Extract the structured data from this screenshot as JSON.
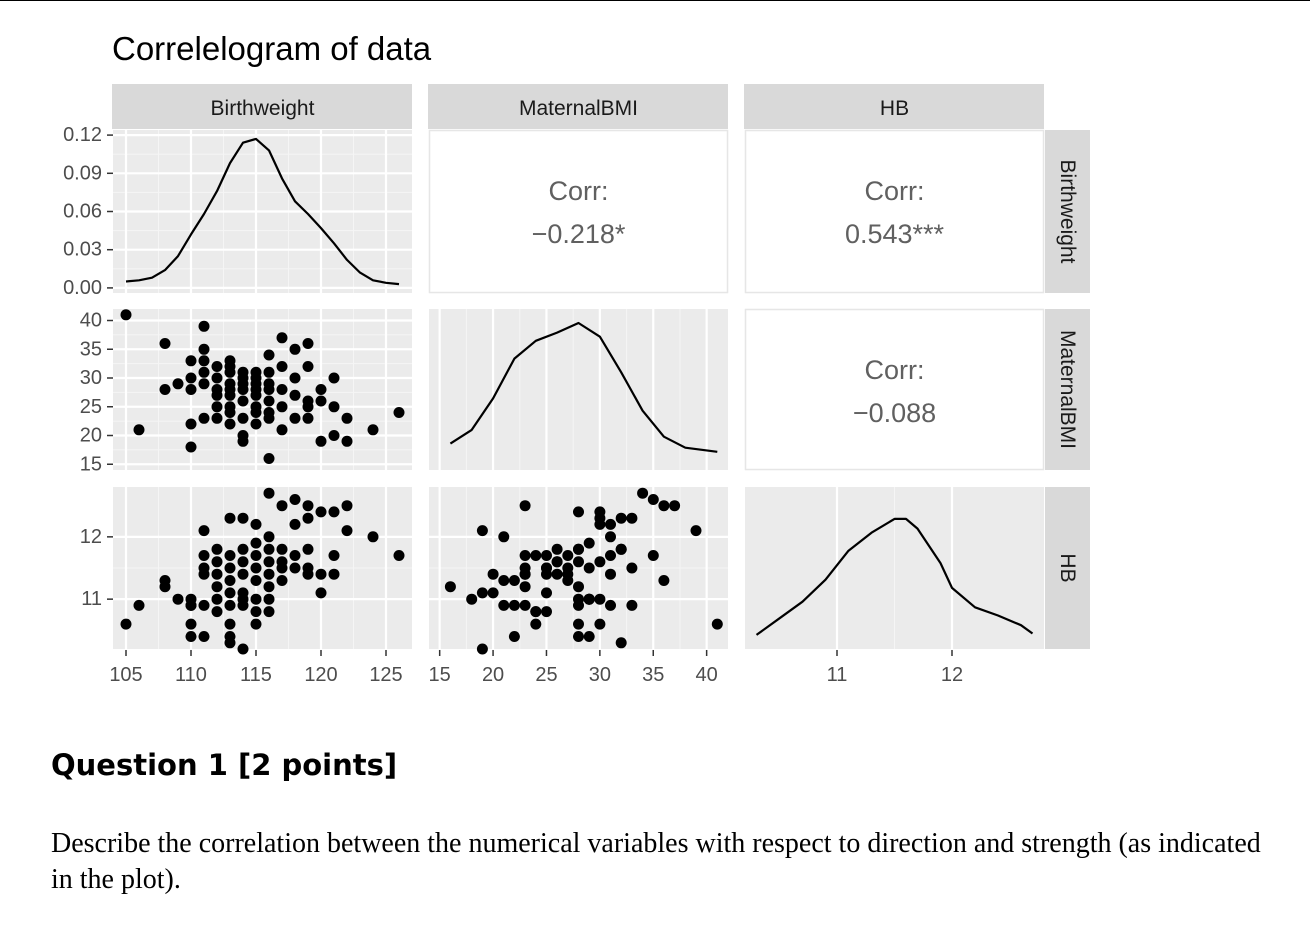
{
  "chart_data": {
    "type": "scatter",
    "title": "Correlelogram of data",
    "variables": [
      "Birthweight",
      "MaternalBMI",
      "HB"
    ],
    "correlations": [
      {
        "row": "Birthweight",
        "col": "MaternalBMI",
        "label": "Corr:",
        "value": "−0.218*"
      },
      {
        "row": "Birthweight",
        "col": "HB",
        "label": "Corr:",
        "value": "0.543***"
      },
      {
        "row": "MaternalBMI",
        "col": "HB",
        "label": "Corr:",
        "value": "−0.088"
      }
    ],
    "axes": {
      "Birthweight": {
        "lim": [
          104,
          127
        ],
        "ticks": [
          105,
          110,
          115,
          120,
          125
        ]
      },
      "MaternalBMI": {
        "lim": [
          14,
          42
        ],
        "ticks": [
          15,
          20,
          25,
          30,
          35,
          40
        ]
      },
      "HB": {
        "lim": [
          10.2,
          12.8
        ],
        "ticks": [
          11,
          12
        ]
      },
      "density_y": {
        "lim": [
          -0.004,
          0.124
        ],
        "ticks": [
          "0.00",
          "0.03",
          "0.06",
          "0.09",
          "0.12"
        ]
      }
    },
    "densities": {
      "Birthweight": [
        [
          105,
          0.005
        ],
        [
          106,
          0.006
        ],
        [
          107,
          0.008
        ],
        [
          108,
          0.014
        ],
        [
          109,
          0.025
        ],
        [
          110,
          0.042
        ],
        [
          111,
          0.058
        ],
        [
          112,
          0.076
        ],
        [
          113,
          0.098
        ],
        [
          114,
          0.114
        ],
        [
          115,
          0.117
        ],
        [
          116,
          0.108
        ],
        [
          117,
          0.086
        ],
        [
          118,
          0.068
        ],
        [
          119,
          0.058
        ],
        [
          120,
          0.047
        ],
        [
          121,
          0.035
        ],
        [
          122,
          0.022
        ],
        [
          123,
          0.012
        ],
        [
          124,
          0.006
        ],
        [
          125,
          0.004
        ],
        [
          126,
          0.003
        ]
      ],
      "MaternalBMI": [
        [
          16,
          0.12
        ],
        [
          18,
          0.22
        ],
        [
          20,
          0.45
        ],
        [
          22,
          0.74
        ],
        [
          24,
          0.87
        ],
        [
          26,
          0.93
        ],
        [
          28,
          1.0
        ],
        [
          30,
          0.9
        ],
        [
          32,
          0.64
        ],
        [
          34,
          0.36
        ],
        [
          36,
          0.17
        ],
        [
          38,
          0.09
        ],
        [
          41,
          0.06
        ]
      ],
      "HB": [
        [
          10.3,
          0.03
        ],
        [
          10.5,
          0.15
        ],
        [
          10.7,
          0.27
        ],
        [
          10.9,
          0.43
        ],
        [
          11.1,
          0.64
        ],
        [
          11.3,
          0.77
        ],
        [
          11.5,
          0.87
        ],
        [
          11.6,
          0.87
        ],
        [
          11.7,
          0.8
        ],
        [
          11.9,
          0.55
        ],
        [
          12.0,
          0.37
        ],
        [
          12.2,
          0.23
        ],
        [
          12.4,
          0.17
        ],
        [
          12.6,
          0.1
        ],
        [
          12.7,
          0.04
        ]
      ]
    },
    "points": [
      {
        "bw": 105,
        "bmi": 41,
        "hb": 10.6
      },
      {
        "bw": 106,
        "bmi": 21,
        "hb": 10.9
      },
      {
        "bw": 108,
        "bmi": 36,
        "hb": 11.3
      },
      {
        "bw": 108,
        "bmi": 28,
        "hb": 11.2
      },
      {
        "bw": 109,
        "bmi": 29,
        "hb": 11.0
      },
      {
        "bw": 110,
        "bmi": 33,
        "hb": 10.9
      },
      {
        "bw": 110,
        "bmi": 30,
        "hb": 10.6
      },
      {
        "bw": 110,
        "bmi": 22,
        "hb": 10.4
      },
      {
        "bw": 110,
        "bmi": 18,
        "hb": 11.0
      },
      {
        "bw": 110,
        "bmi": 28,
        "hb": 10.9
      },
      {
        "bw": 111,
        "bmi": 39,
        "hb": 12.1
      },
      {
        "bw": 111,
        "bmi": 35,
        "hb": 11.7
      },
      {
        "bw": 111,
        "bmi": 33,
        "hb": 11.5
      },
      {
        "bw": 111,
        "bmi": 31,
        "hb": 11.4
      },
      {
        "bw": 111,
        "bmi": 23,
        "hb": 10.9
      },
      {
        "bw": 111,
        "bmi": 29,
        "hb": 10.4
      },
      {
        "bw": 112,
        "bmi": 32,
        "hb": 11.8
      },
      {
        "bw": 112,
        "bmi": 30,
        "hb": 11.6
      },
      {
        "bw": 112,
        "bmi": 27,
        "hb": 11.4
      },
      {
        "bw": 112,
        "bmi": 23,
        "hb": 11.2
      },
      {
        "bw": 112,
        "bmi": 28,
        "hb": 11.0
      },
      {
        "bw": 112,
        "bmi": 25,
        "hb": 10.8
      },
      {
        "bw": 113,
        "bmi": 33,
        "hb": 12.3
      },
      {
        "bw": 113,
        "bmi": 31,
        "hb": 11.7
      },
      {
        "bw": 113,
        "bmi": 29,
        "hb": 11.5
      },
      {
        "bw": 113,
        "bmi": 27,
        "hb": 11.3
      },
      {
        "bw": 113,
        "bmi": 25,
        "hb": 11.1
      },
      {
        "bw": 113,
        "bmi": 22,
        "hb": 10.9
      },
      {
        "bw": 113,
        "bmi": 24,
        "hb": 10.6
      },
      {
        "bw": 113,
        "bmi": 28,
        "hb": 10.4
      },
      {
        "bw": 113,
        "bmi": 32,
        "hb": 10.3
      },
      {
        "bw": 114,
        "bmi": 30,
        "hb": 12.3
      },
      {
        "bw": 114,
        "bmi": 28,
        "hb": 11.8
      },
      {
        "bw": 114,
        "bmi": 26,
        "hb": 11.6
      },
      {
        "bw": 114,
        "bmi": 23,
        "hb": 11.4
      },
      {
        "bw": 114,
        "bmi": 20,
        "hb": 11.1
      },
      {
        "bw": 114,
        "bmi": 31,
        "hb": 10.9
      },
      {
        "bw": 114,
        "bmi": 19,
        "hb": 10.2
      },
      {
        "bw": 114,
        "bmi": 29,
        "hb": 11.0
      },
      {
        "bw": 115,
        "bmi": 31,
        "hb": 12.2
      },
      {
        "bw": 115,
        "bmi": 29,
        "hb": 11.9
      },
      {
        "bw": 115,
        "bmi": 27,
        "hb": 11.7
      },
      {
        "bw": 115,
        "bmi": 25,
        "hb": 11.5
      },
      {
        "bw": 115,
        "bmi": 22,
        "hb": 11.3
      },
      {
        "bw": 115,
        "bmi": 30,
        "hb": 11.0
      },
      {
        "bw": 115,
        "bmi": 24,
        "hb": 10.8
      },
      {
        "bw": 115,
        "bmi": 28,
        "hb": 10.6
      },
      {
        "bw": 116,
        "bmi": 34,
        "hb": 12.7
      },
      {
        "bw": 116,
        "bmi": 31,
        "hb": 12.0
      },
      {
        "bw": 116,
        "bmi": 28,
        "hb": 11.8
      },
      {
        "bw": 116,
        "bmi": 26,
        "hb": 11.6
      },
      {
        "bw": 116,
        "bmi": 23,
        "hb": 11.4
      },
      {
        "bw": 116,
        "bmi": 16,
        "hb": 11.2
      },
      {
        "bw": 116,
        "bmi": 29,
        "hb": 11.0
      },
      {
        "bw": 116,
        "bmi": 24,
        "hb": 10.8
      },
      {
        "bw": 117,
        "bmi": 37,
        "hb": 12.5
      },
      {
        "bw": 117,
        "bmi": 32,
        "hb": 11.8
      },
      {
        "bw": 117,
        "bmi": 28,
        "hb": 11.6
      },
      {
        "bw": 117,
        "bmi": 25,
        "hb": 11.5
      },
      {
        "bw": 117,
        "bmi": 21,
        "hb": 11.3
      },
      {
        "bw": 118,
        "bmi": 35,
        "hb": 12.6
      },
      {
        "bw": 118,
        "bmi": 30,
        "hb": 12.2
      },
      {
        "bw": 118,
        "bmi": 23,
        "hb": 11.7
      },
      {
        "bw": 118,
        "bmi": 27,
        "hb": 11.5
      },
      {
        "bw": 119,
        "bmi": 36,
        "hb": 12.5
      },
      {
        "bw": 119,
        "bmi": 32,
        "hb": 12.3
      },
      {
        "bw": 119,
        "bmi": 26,
        "hb": 11.8
      },
      {
        "bw": 119,
        "bmi": 23,
        "hb": 11.5
      },
      {
        "bw": 119,
        "bmi": 25,
        "hb": 11.4
      },
      {
        "bw": 120,
        "bmi": 28,
        "hb": 12.4
      },
      {
        "bw": 120,
        "bmi": 19,
        "hb": 11.1
      },
      {
        "bw": 120,
        "bmi": 26,
        "hb": 11.4
      },
      {
        "bw": 121,
        "bmi": 30,
        "hb": 12.4
      },
      {
        "bw": 121,
        "bmi": 25,
        "hb": 11.7
      },
      {
        "bw": 121,
        "bmi": 20,
        "hb": 11.4
      },
      {
        "bw": 122,
        "bmi": 23,
        "hb": 12.5
      },
      {
        "bw": 122,
        "bmi": 19,
        "hb": 12.1
      },
      {
        "bw": 124,
        "bmi": 21,
        "hb": 12.0
      },
      {
        "bw": 126,
        "bmi": 24,
        "hb": 11.7
      }
    ]
  },
  "question": {
    "heading": "Question 1 [2 points]",
    "body": "Describe the correlation between the numerical variables with respect to direction and strength (as indicated in the plot)."
  }
}
